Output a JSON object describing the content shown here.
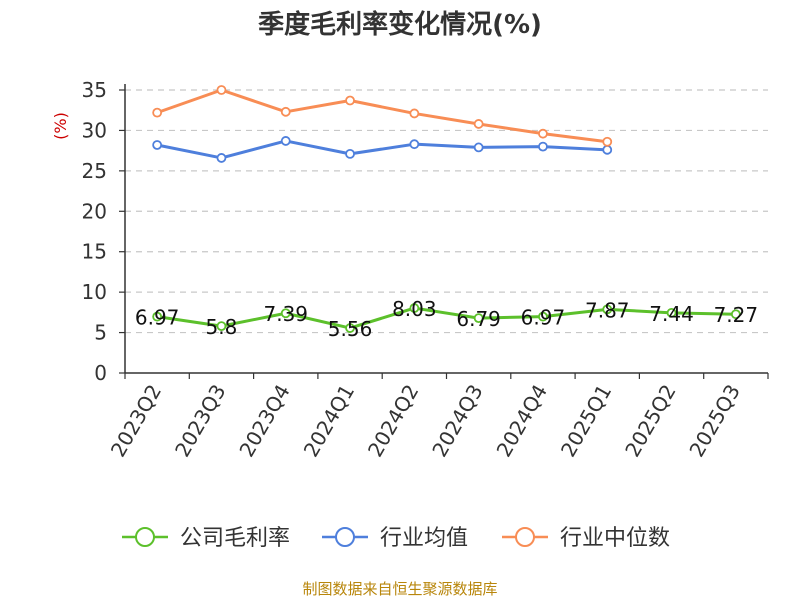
{
  "title": "季度毛利率变化情况(%)",
  "source": "制图数据来自恒生聚源数据库",
  "chart_data": {
    "type": "line",
    "title": "季度毛利率变化情况(%)",
    "ylabel": "(%)",
    "ylim": [
      0,
      35
    ],
    "yticks": [
      0,
      5,
      10,
      15,
      20,
      25,
      30,
      35
    ],
    "grid": true,
    "legend_position": "bottom",
    "categories": [
      "2023Q2",
      "2023Q3",
      "2023Q4",
      "2024Q1",
      "2024Q2",
      "2024Q3",
      "2024Q4",
      "2025Q1",
      "2025Q2",
      "2025Q3"
    ],
    "series": [
      {
        "name": "公司毛利率",
        "color": "#5cc02b",
        "values": [
          6.97,
          5.8,
          7.39,
          5.56,
          8.03,
          6.79,
          6.97,
          7.87,
          7.44,
          7.27
        ],
        "show_labels": true
      },
      {
        "name": "行业均值",
        "color": "#4e7fdc",
        "values": [
          28.2,
          26.6,
          28.7,
          27.1,
          28.3,
          27.9,
          28.0,
          27.6,
          null,
          null
        ],
        "show_labels": false
      },
      {
        "name": "行业中位数",
        "color": "#f88d55",
        "values": [
          32.2,
          35.0,
          32.3,
          33.7,
          32.1,
          30.8,
          29.6,
          28.6,
          null,
          null
        ],
        "show_labels": false
      }
    ]
  }
}
